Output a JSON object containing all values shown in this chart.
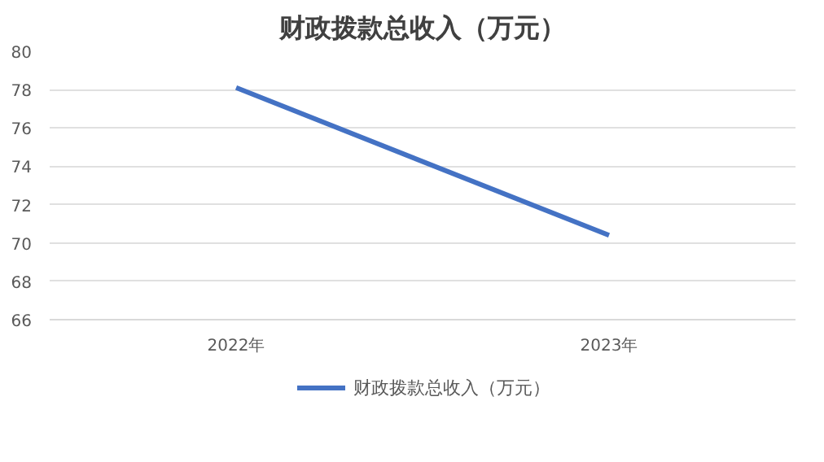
{
  "chart_data": {
    "type": "line",
    "title": "财政拨款总收入（万元）",
    "categories": [
      "2022年",
      "2023年"
    ],
    "series": [
      {
        "name": "财政拨款总收入（万元）",
        "color": "#4472c4",
        "values": [
          78.1,
          70.4
        ]
      }
    ],
    "ylim": [
      66,
      80
    ],
    "yticks": [
      66,
      68,
      70,
      72,
      74,
      76,
      78,
      80
    ],
    "grid": "y",
    "legend": "bottom",
    "marker": "none",
    "line_style": "solid"
  }
}
